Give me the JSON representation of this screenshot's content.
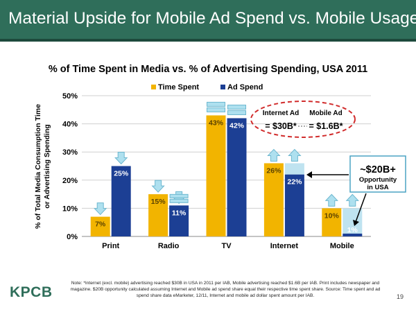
{
  "header": {
    "title": "Material Upside for Mobile Ad Spend vs. Mobile Usage"
  },
  "chart_data": {
    "type": "bar",
    "title": "% of Time Spent in Media vs. % of Advertising Spending, USA 2011",
    "ylabel": "% of Total Media Consumption Time or Advertising Spending",
    "xlabel": "",
    "categories": [
      "Print",
      "Radio",
      "TV",
      "Internet",
      "Mobile"
    ],
    "series": [
      {
        "name": "Time Spent",
        "values": [
          7,
          15,
          43,
          26,
          10
        ],
        "labels": [
          "7%",
          "15%",
          "43%",
          "26%",
          "10%"
        ],
        "color": "#f2b400"
      },
      {
        "name": "Ad Spend",
        "values": [
          25,
          11,
          42,
          22,
          1
        ],
        "labels": [
          "25%",
          "11%",
          "42%",
          "22%",
          "1%"
        ],
        "color": "#1c3f94"
      }
    ],
    "yticks": [
      0,
      10,
      20,
      30,
      40,
      50
    ],
    "yticklabels": [
      "0%",
      "10%",
      "20%",
      "30%",
      "40%",
      "50%"
    ],
    "ylim": [
      0,
      50
    ],
    "grid": true,
    "legend": "top-center",
    "indicators": [
      "down",
      "down",
      "equal",
      "up",
      "up"
    ],
    "opportunity_color": "#bfe3f0",
    "annotations": {
      "internet_ad": "Internet Ad",
      "internet_ad_value": "= $30B*",
      "mobile_ad": "Mobile Ad",
      "mobile_ad_value": "= $1.6B*",
      "opportunity_amount": "~$20B+",
      "opportunity_line1": "Opportunity",
      "opportunity_line2": "in USA"
    }
  },
  "footnote": "Note: *Internet (excl. mobile) advertising reached $30B in USA in 2011 per IAB, Mobile advertising reached $1.6B per IAB. Print includes newspaper and magazine. $20B opportunity calculated assuming Internet and Mobile ad spend share equal their respective time spent share. Source: Time spent and ad spend share data eMarketer, 12/11, Internet and mobile ad dollar spent amount per IAB.",
  "logo": "KPCB",
  "page_number": "19"
}
